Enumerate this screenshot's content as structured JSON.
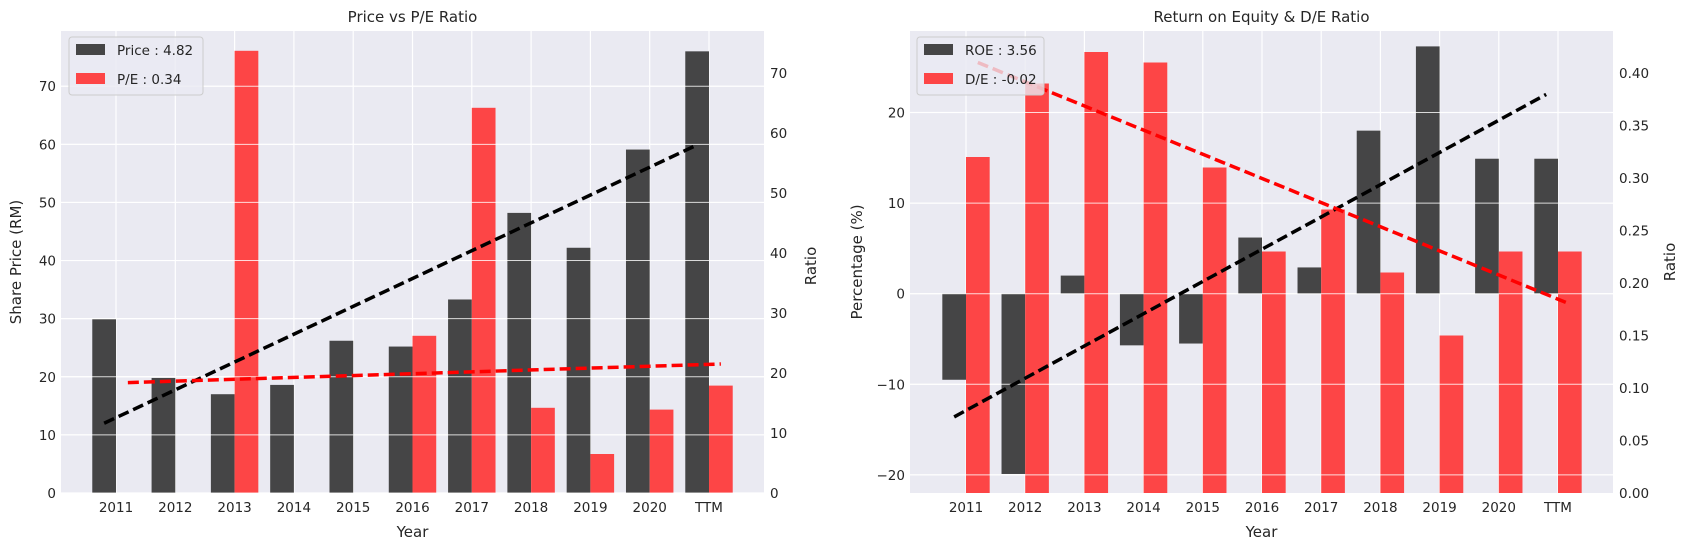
{
  "colors": {
    "background": "#eaeaf2",
    "grid": "#ffffff",
    "dark_bar": "#333333",
    "red_bar": "#ff3333",
    "dark_trend": "#000000",
    "red_trend": "#ff0000"
  },
  "chart_data": [
    {
      "type": "bar",
      "title": "Price vs P/E Ratio",
      "xlabel": "Year",
      "ylabel": "Share Price (RM)",
      "y2label": "Ratio",
      "categories": [
        "2011",
        "2012",
        "2013",
        "2014",
        "2015",
        "2016",
        "2017",
        "2018",
        "2019",
        "2020",
        "TTM"
      ],
      "ylim": [
        0,
        79.5
      ],
      "y2lim": [
        0,
        77
      ],
      "yticks": [
        "0",
        "10",
        "20",
        "30",
        "40",
        "50",
        "60",
        "70"
      ],
      "y2ticks": [
        "0",
        "10",
        "20",
        "30",
        "40",
        "50",
        "60",
        "70"
      ],
      "legend_position": "top-left",
      "grid": true,
      "series": [
        {
          "name": "Price : 4.82",
          "axis": "left",
          "color": "#333333",
          "values": [
            29.9,
            19.8,
            17.0,
            18.6,
            26.2,
            25.2,
            33.3,
            48.2,
            42.2,
            59.1,
            76.0
          ],
          "trend": [
            12.0,
            59.9
          ]
        },
        {
          "name": "P/E : 0.34",
          "axis": "right",
          "color": "#ff3333",
          "values": [
            null,
            null,
            73.7,
            null,
            null,
            26.2,
            64.2,
            14.2,
            6.5,
            13.9,
            17.9
          ],
          "trend": [
            18.4,
            21.5
          ]
        }
      ]
    },
    {
      "type": "bar",
      "title": "Return on Equity & D/E Ratio",
      "xlabel": "Year",
      "ylabel": "Percentage (%)",
      "y2label": "Ratio",
      "categories": [
        "2011",
        "2012",
        "2013",
        "2014",
        "2015",
        "2016",
        "2017",
        "2018",
        "2019",
        "2020",
        "TTM"
      ],
      "ylim": [
        -22,
        29
      ],
      "y2lim": [
        0,
        0.44
      ],
      "yticks": [
        "−20",
        "−10",
        "0",
        "10",
        "20"
      ],
      "y2ticks": [
        "0.00",
        "0.05",
        "0.10",
        "0.15",
        "0.20",
        "0.25",
        "0.30",
        "0.35",
        "0.40"
      ],
      "legend_position": "top-left",
      "grid": true,
      "series": [
        {
          "name": "ROE : 3.56",
          "axis": "left",
          "color": "#333333",
          "values": [
            -9.5,
            -19.9,
            2.0,
            -5.7,
            -5.5,
            6.2,
            2.9,
            18.0,
            27.3,
            14.9,
            14.9
          ],
          "trend": [
            -13.6,
            22.0
          ]
        },
        {
          "name": "D/E : -0.02",
          "axis": "right",
          "color": "#ff3333",
          "values": [
            0.32,
            0.39,
            0.42,
            0.41,
            0.31,
            0.23,
            0.27,
            0.21,
            0.15,
            0.23,
            0.23
          ],
          "trend": [
            0.41,
            0.18
          ]
        }
      ]
    }
  ]
}
